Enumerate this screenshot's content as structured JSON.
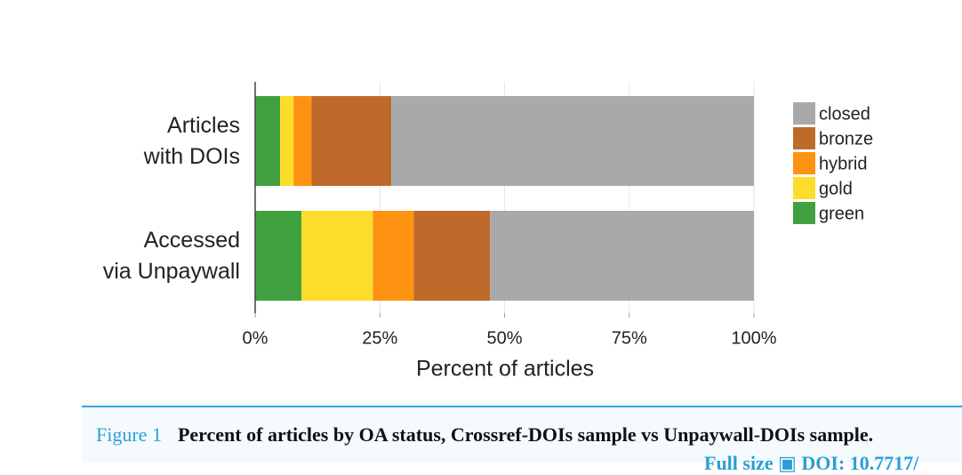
{
  "chart_data": {
    "type": "stacked-barh",
    "categories": [
      "Articles\nwith DOIs",
      "Accessed\nvia Unpaywall"
    ],
    "series": [
      {
        "name": "green",
        "color": "#41a03f",
        "values": [
          5.0,
          9.3
        ]
      },
      {
        "name": "gold",
        "color": "#fddd2c",
        "values": [
          2.7,
          14.3
        ]
      },
      {
        "name": "hybrid",
        "color": "#fd9310",
        "values": [
          3.6,
          8.2
        ]
      },
      {
        "name": "bronze",
        "color": "#bd6a2b",
        "values": [
          16.0,
          15.3
        ]
      },
      {
        "name": "closed",
        "color": "#a9a9a9",
        "values": [
          72.7,
          52.9
        ]
      }
    ],
    "xlabel": "Percent of articles",
    "xlim": [
      0,
      100
    ],
    "xticks": [
      {
        "value": 0,
        "label": "0%"
      },
      {
        "value": 25,
        "label": "25%"
      },
      {
        "value": 50,
        "label": "50%"
      },
      {
        "value": 75,
        "label": "75%"
      },
      {
        "value": 100,
        "label": "100%"
      }
    ],
    "grid": true,
    "legend": "right"
  },
  "caption": {
    "label": "Figure 1",
    "text": "Percent of articles by OA status, Crossref-DOIs sample vs Unpaywall-DOIs sample.",
    "links": [
      "Full size",
      "DOI: 10.7717/"
    ]
  }
}
